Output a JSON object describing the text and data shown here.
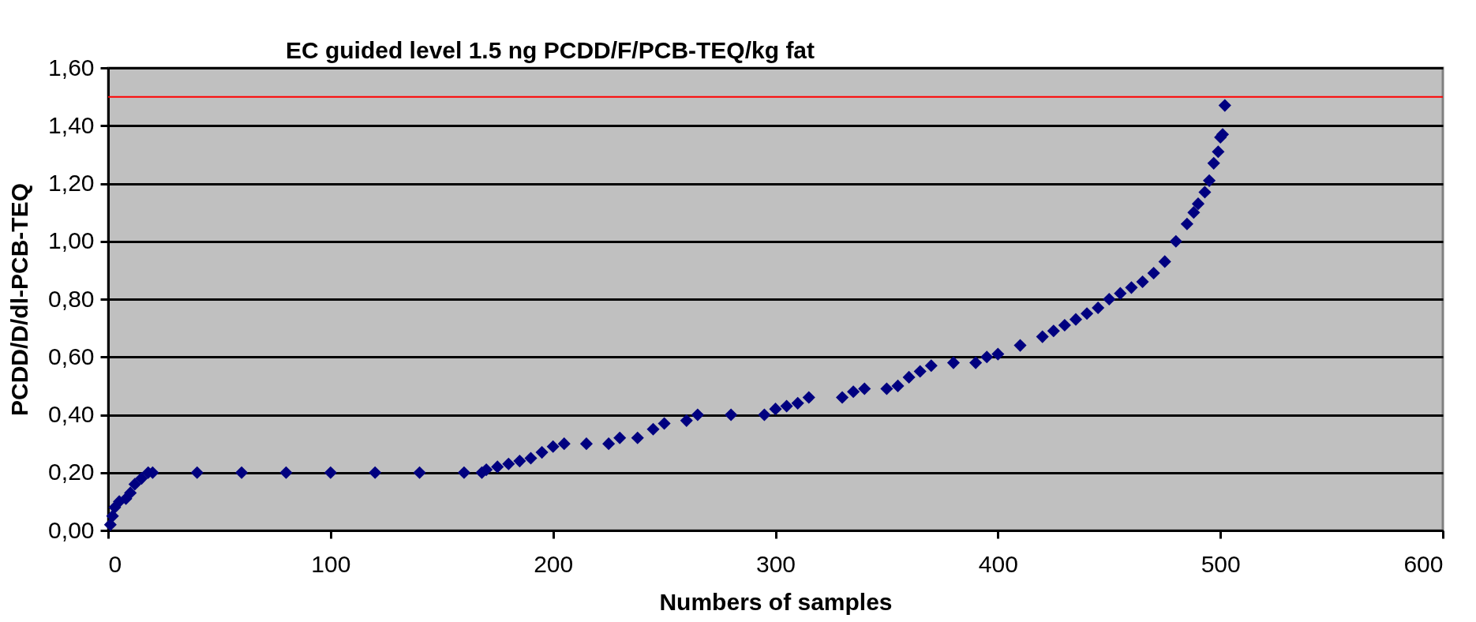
{
  "chart_data": {
    "type": "scatter",
    "xlabel": "Numbers of samples",
    "ylabel": "PCDD/D/dl-PCB-TEQ",
    "x": [
      1,
      2,
      3,
      5,
      8,
      10,
      12,
      15,
      18,
      20,
      40,
      60,
      80,
      100,
      120,
      140,
      160,
      168,
      170,
      175,
      180,
      185,
      190,
      195,
      200,
      205,
      215,
      225,
      230,
      238,
      245,
      250,
      260,
      265,
      280,
      295,
      300,
      305,
      310,
      315,
      330,
      335,
      340,
      350,
      355,
      360,
      365,
      370,
      380,
      390,
      395,
      400,
      410,
      420,
      425,
      430,
      435,
      440,
      445,
      450,
      455,
      460,
      465,
      470,
      475,
      480,
      485,
      488,
      490,
      493,
      495,
      497,
      499,
      500,
      501,
      502
    ],
    "series": [
      {
        "color": "#000080",
        "values": [
          0.02,
          0.05,
          0.08,
          0.1,
          0.11,
          0.13,
          0.16,
          0.18,
          0.2,
          0.2,
          0.2,
          0.2,
          0.2,
          0.2,
          0.2,
          0.2,
          0.2,
          0.2,
          0.21,
          0.22,
          0.23,
          0.24,
          0.25,
          0.27,
          0.29,
          0.3,
          0.3,
          0.3,
          0.32,
          0.32,
          0.35,
          0.37,
          0.38,
          0.4,
          0.4,
          0.4,
          0.42,
          0.43,
          0.44,
          0.46,
          0.46,
          0.48,
          0.49,
          0.49,
          0.5,
          0.53,
          0.55,
          0.57,
          0.58,
          0.58,
          0.6,
          0.61,
          0.64,
          0.67,
          0.69,
          0.71,
          0.73,
          0.75,
          0.77,
          0.8,
          0.82,
          0.84,
          0.86,
          0.89,
          0.93,
          1.0,
          1.06,
          1.1,
          1.13,
          1.17,
          1.21,
          1.27,
          1.31,
          1.36,
          1.37,
          1.47
        ]
      }
    ],
    "xlim": [
      0,
      600
    ],
    "xticks": [
      0,
      100,
      200,
      300,
      400,
      500,
      600
    ],
    "ylim": [
      0,
      1.6
    ],
    "yticks": [
      {
        "value": 0,
        "label": "0,00"
      },
      {
        "value": 0.2,
        "label": "0,20"
      },
      {
        "value": 0.4,
        "label": "0,40"
      },
      {
        "value": 0.6,
        "label": "0,60"
      },
      {
        "value": 0.8,
        "label": "0,80"
      },
      {
        "value": 1.0,
        "label": "1,00"
      },
      {
        "value": 1.2,
        "label": "1,20"
      },
      {
        "value": 1.4,
        "label": "1,40"
      },
      {
        "value": 1.6,
        "label": "1,60"
      }
    ],
    "ref_lines": [
      {
        "axis": "y",
        "value": 1.5,
        "label": "EC guided level 1.5 ng PCDD/F/PCB-TEQ/kg fat",
        "color": "#ff0000"
      }
    ],
    "grid": "y",
    "marker": "diamond"
  }
}
